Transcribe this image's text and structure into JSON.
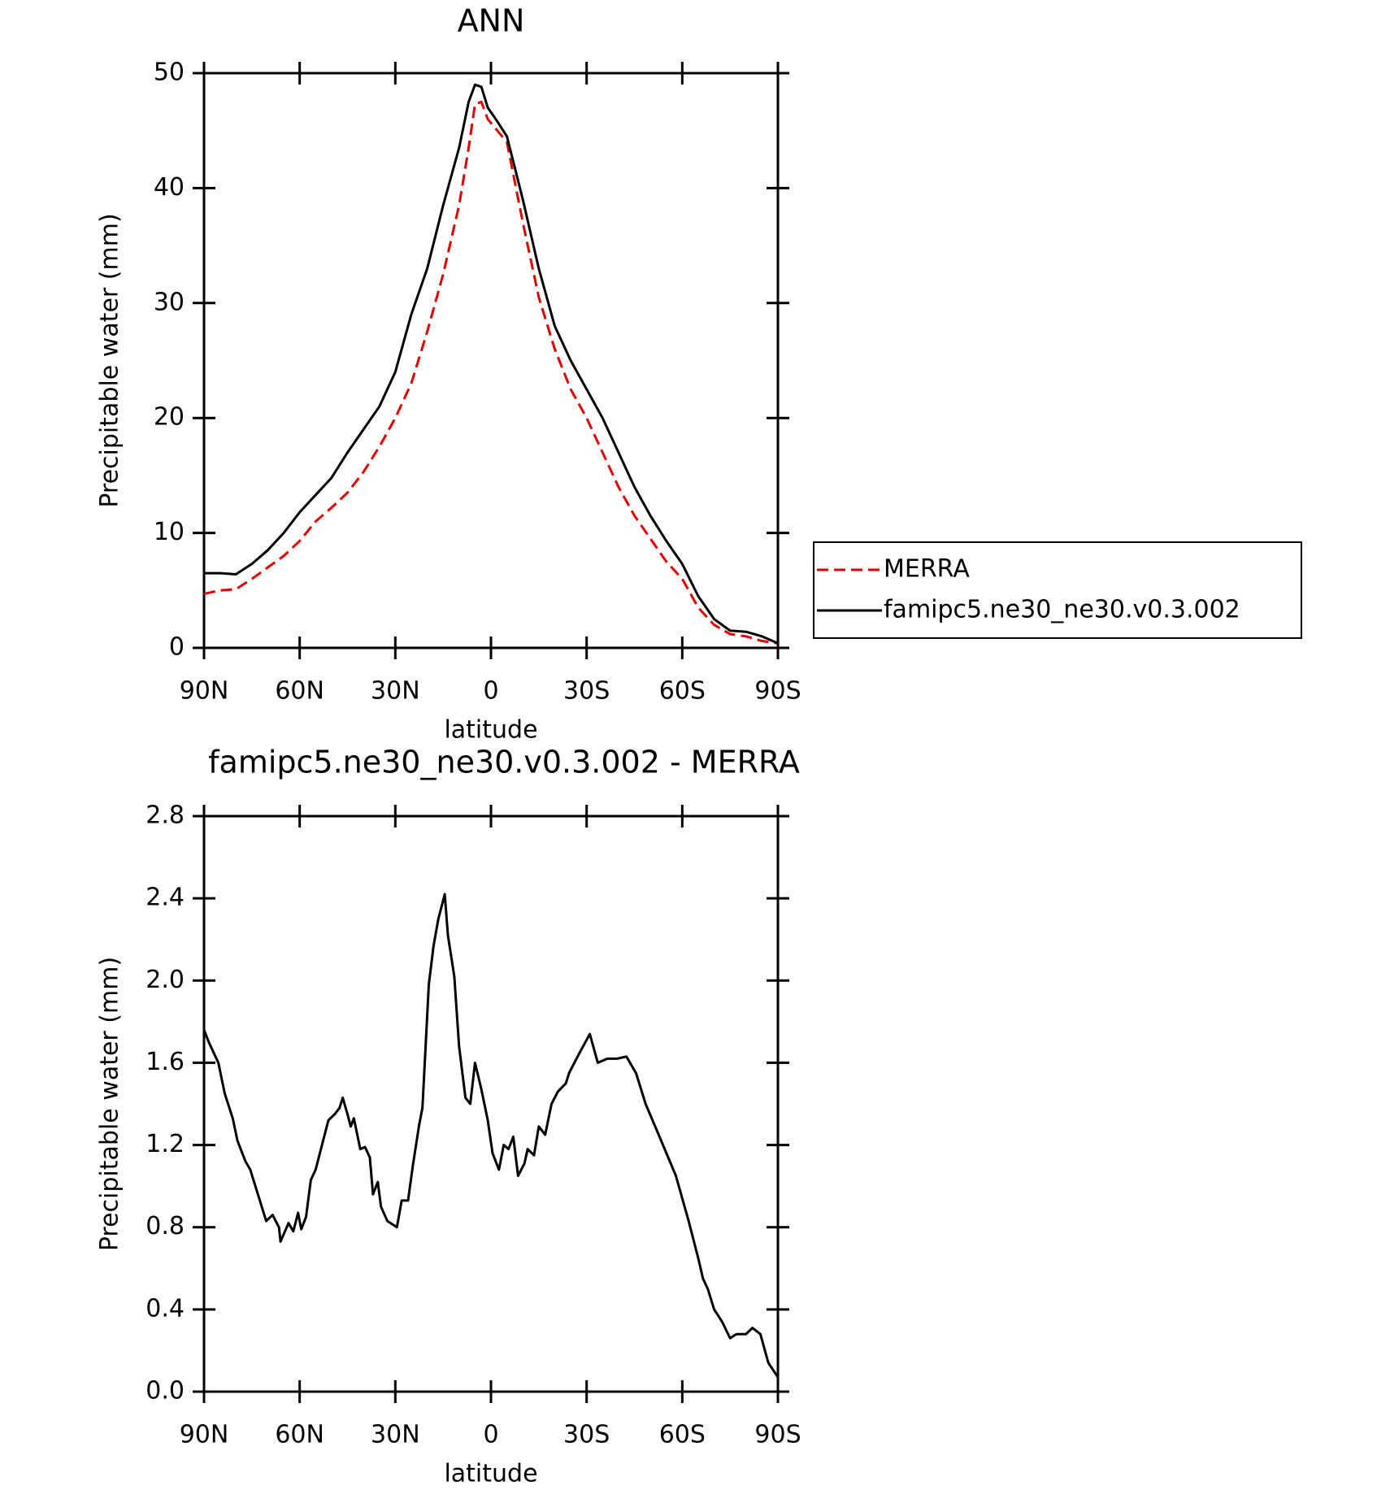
{
  "chart_data": [
    {
      "type": "line",
      "title": "ANN",
      "xlabel": "latitude",
      "ylabel": "Precipitable water (mm)",
      "x": [
        90,
        85,
        80,
        75,
        70,
        65,
        60,
        55,
        50,
        45,
        40,
        35,
        30,
        25,
        20,
        15,
        10,
        7,
        5,
        3,
        1,
        -2,
        -5,
        -10,
        -15,
        -20,
        -25,
        -30,
        -35,
        -40,
        -45,
        -50,
        -55,
        -60,
        -65,
        -70,
        -75,
        -80,
        -85,
        -90
      ],
      "series": [
        {
          "name": "MERRA",
          "color": "#e00000",
          "dash": true,
          "values": [
            4.7,
            5.0,
            5.1,
            6.0,
            7.0,
            8.0,
            9.3,
            11.0,
            12.2,
            13.5,
            15.3,
            17.5,
            20.0,
            23.0,
            27.5,
            32.5,
            38.5,
            43.5,
            47.3,
            47.5,
            46,
            45,
            44,
            37,
            30.5,
            26,
            22.5,
            20,
            17,
            14,
            11.5,
            9.5,
            7.5,
            6,
            3.5,
            2.0,
            1.2,
            1.0,
            0.6,
            0.4
          ]
        },
        {
          "name": "famipc5.ne30_ne30.v0.3.002",
          "color": "#000000",
          "dash": false,
          "values": [
            6.5,
            6.5,
            6.4,
            7.3,
            8.5,
            10.0,
            11.8,
            13.3,
            14.8,
            17.0,
            19.0,
            21.0,
            24.0,
            29.0,
            33.0,
            38.5,
            43.5,
            47.5,
            49.0,
            48.8,
            47.0,
            45.8,
            44.5,
            39,
            33,
            28,
            25,
            22.5,
            20,
            17,
            14,
            11.5,
            9.3,
            7.3,
            4.5,
            2.5,
            1.5,
            1.4,
            1.0,
            0.4
          ]
        }
      ],
      "xlim": [
        90,
        -90
      ],
      "xticks": [
        {
          "value": 90,
          "label": "90N"
        },
        {
          "value": 60,
          "label": "60N"
        },
        {
          "value": 30,
          "label": "30N"
        },
        0,
        {
          "value": -30,
          "label": "30S"
        },
        {
          "value": -60,
          "label": "60S"
        },
        {
          "value": -90,
          "label": "90S"
        }
      ],
      "ylim": [
        0,
        50
      ],
      "yticks": [
        0,
        10,
        20,
        30,
        40,
        50
      ],
      "legend": "right"
    },
    {
      "type": "line",
      "title": "famipc5.ne30_ne30.v0.3.002 - MERRA",
      "xlabel": "latitude",
      "ylabel": "Precipitable water (mm)",
      "x": [
        90,
        88.5,
        85.5,
        83.5,
        81,
        79.5,
        77,
        75.5,
        73.5,
        70.5,
        68.5,
        66.5,
        66,
        63.5,
        62,
        60.5,
        59.5,
        58,
        56.5,
        55,
        53,
        51,
        49,
        47.5,
        46.5,
        45,
        44,
        43,
        41,
        39.5,
        38,
        37,
        35.5,
        34.5,
        32.5,
        29.5,
        28,
        26,
        24.5,
        22.5,
        21.5,
        19.5,
        18,
        16.5,
        14.5,
        13.5,
        11.5,
        10,
        8,
        6.5,
        5,
        3,
        1,
        -0.5,
        -2.5,
        -4,
        -5.5,
        -7,
        -8.5,
        -10.5,
        -11.5,
        -13.5,
        -15,
        -17,
        -19,
        -21,
        -23.5,
        -24.5,
        -27.5,
        -31,
        -33.5,
        -36.5,
        -39.5,
        -42.5,
        -45.5,
        -48.5,
        -54.5,
        -58,
        -62,
        -65,
        -66.5,
        -68,
        -70,
        -72.5,
        -75,
        -77,
        -80,
        -82,
        -84.5,
        -87,
        -90
      ],
      "series": [
        {
          "color": "#000000",
          "values": [
            1.76,
            1.7,
            1.6,
            1.45,
            1.33,
            1.22,
            1.12,
            1.08,
            0.98,
            0.83,
            0.86,
            0.8,
            0.73,
            0.82,
            0.78,
            0.87,
            0.79,
            0.85,
            1.03,
            1.08,
            1.2,
            1.32,
            1.35,
            1.38,
            1.43,
            1.35,
            1.29,
            1.33,
            1.18,
            1.19,
            1.14,
            0.96,
            1.02,
            0.9,
            0.83,
            0.8,
            0.93,
            0.93,
            1.1,
            1.3,
            1.38,
            1.98,
            2.17,
            2.3,
            2.42,
            2.22,
            2.02,
            1.68,
            1.43,
            1.4,
            1.6,
            1.47,
            1.32,
            1.16,
            1.08,
            1.2,
            1.18,
            1.24,
            1.05,
            1.11,
            1.18,
            1.15,
            1.29,
            1.25,
            1.4,
            1.46,
            1.5,
            1.55,
            1.64,
            1.74,
            1.6,
            1.62,
            1.62,
            1.63,
            1.55,
            1.4,
            1.18,
            1.05,
            0.83,
            0.65,
            0.55,
            0.5,
            0.4,
            0.34,
            0.26,
            0.28,
            0.28,
            0.31,
            0.28,
            0.14,
            0.07
          ]
        }
      ],
      "xlim": [
        90,
        -90
      ],
      "xticks": [
        {
          "value": 90,
          "label": "90N"
        },
        {
          "value": 60,
          "label": "60N"
        },
        {
          "value": 30,
          "label": "30N"
        },
        0,
        {
          "value": -30,
          "label": "30S"
        },
        {
          "value": -60,
          "label": "60S"
        },
        {
          "value": -90,
          "label": "90S"
        }
      ],
      "ylim": [
        0,
        2.8
      ],
      "yticks": [
        {
          "value": 0,
          "label": "0.0"
        },
        0.4,
        0.8,
        1.2,
        1.6,
        {
          "value": 2,
          "label": "2.0"
        },
        2.4,
        2.8
      ]
    }
  ]
}
